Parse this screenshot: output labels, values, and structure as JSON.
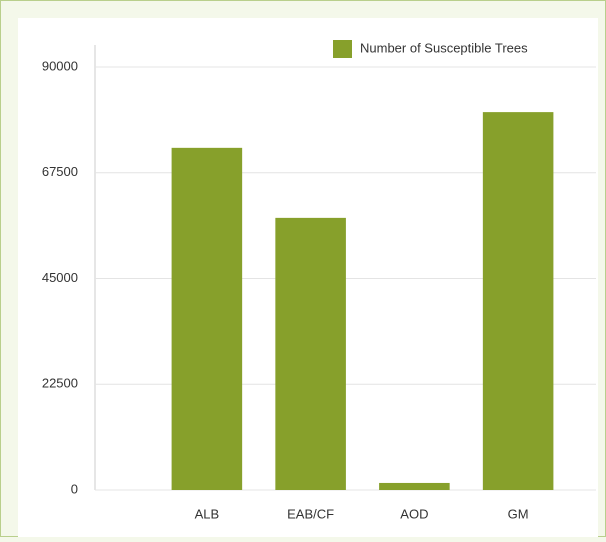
{
  "chart_data": {
    "type": "bar",
    "categories": [
      "ALB",
      "EAB/CF",
      "AOD",
      "GM"
    ],
    "series": [
      {
        "name": "Number of Susceptible Trees",
        "color": "#87a02b",
        "values": [
          72800,
          57900,
          1500,
          80400
        ]
      }
    ],
    "ylim": [
      0,
      90000
    ],
    "yticks": [
      0,
      22500,
      45000,
      67500,
      90000
    ],
    "grid": true,
    "legend": "top-right"
  }
}
